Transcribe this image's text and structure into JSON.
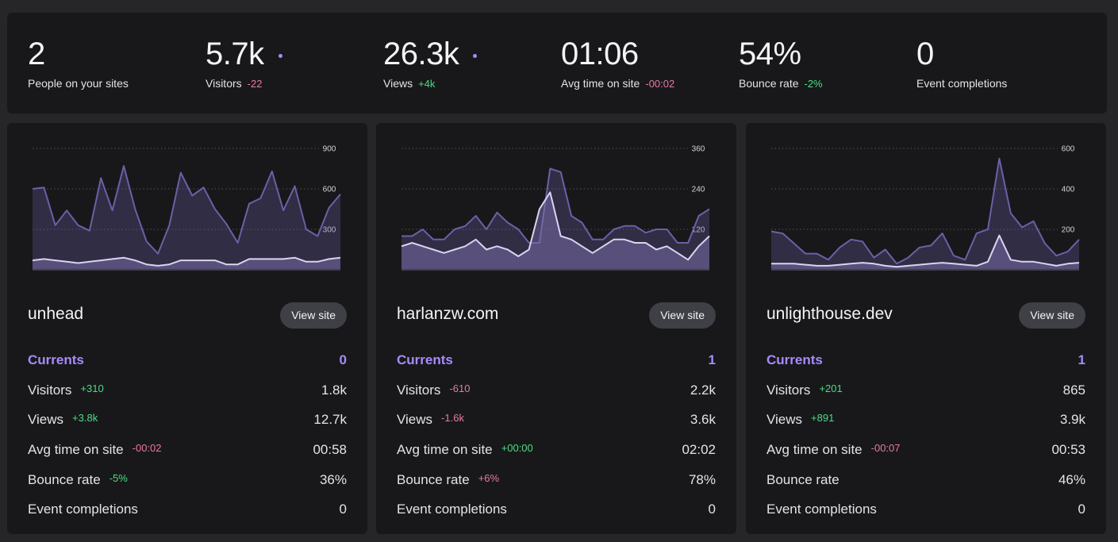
{
  "colors": {
    "accent": "#a78bfa",
    "positive": "#4ade80",
    "negative": "#e879a6",
    "series_views": "#6d5fa6",
    "series_visitors": "#d9d4f0"
  },
  "summary": [
    {
      "value": "2",
      "label": "People on your sites",
      "delta": "",
      "delta_kind": "",
      "dot": false
    },
    {
      "value": "5.7k",
      "label": "Visitors",
      "delta": "-22",
      "delta_kind": "neg",
      "dot": true
    },
    {
      "value": "26.3k",
      "label": "Views",
      "delta": "+4k",
      "delta_kind": "pos",
      "dot": true
    },
    {
      "value": "01:06",
      "label": "Avg time on site",
      "delta": "-00:02",
      "delta_kind": "neg",
      "dot": false
    },
    {
      "value": "54%",
      "label": "Bounce rate",
      "delta": "-2%",
      "delta_kind": "pos",
      "dot": false
    },
    {
      "value": "0",
      "label": "Event completions",
      "delta": "",
      "delta_kind": "",
      "dot": false
    }
  ],
  "sites": [
    {
      "name": "unhead",
      "button": "View site",
      "chart_data": {
        "type": "area",
        "ticks": [
          300,
          600,
          900
        ],
        "ylim": [
          0,
          900
        ],
        "series": [
          {
            "values": [
              600,
              610,
              330,
              440,
              330,
              290,
              680,
              440,
              770,
              450,
              210,
              120,
              330,
              720,
              550,
              610,
              450,
              340,
              200,
              490,
              530,
              730,
              440,
              620,
              300,
              250,
              460,
              560
            ]
          },
          {
            "values": [
              70,
              80,
              70,
              60,
              50,
              60,
              70,
              80,
              90,
              70,
              40,
              30,
              40,
              70,
              70,
              70,
              70,
              40,
              40,
              80,
              80,
              80,
              80,
              90,
              60,
              60,
              80,
              90
            ]
          }
        ]
      },
      "currents_label": "Currents",
      "currents_value": "0",
      "metrics": [
        {
          "label": "Visitors",
          "delta": "+310",
          "delta_kind": "pos",
          "value": "1.8k"
        },
        {
          "label": "Views",
          "delta": "+3.8k",
          "delta_kind": "pos",
          "value": "12.7k"
        },
        {
          "label": "Avg time on site",
          "delta": "-00:02",
          "delta_kind": "neg",
          "value": "00:58"
        },
        {
          "label": "Bounce rate",
          "delta": "-5%",
          "delta_kind": "pos",
          "value": "36%"
        },
        {
          "label": "Event completions",
          "delta": "",
          "delta_kind": "",
          "value": "0"
        }
      ]
    },
    {
      "name": "harlanzw.com",
      "button": "View site",
      "chart_data": {
        "type": "area",
        "ticks": [
          120,
          240,
          360
        ],
        "ylim": [
          0,
          360
        ],
        "series": [
          {
            "values": [
              100,
              100,
              120,
              90,
              90,
              120,
              130,
              160,
              120,
              170,
              140,
              120,
              80,
              80,
              300,
              290,
              160,
              140,
              90,
              90,
              120,
              130,
              130,
              110,
              120,
              120,
              80,
              80,
              160,
              180
            ]
          },
          {
            "values": [
              70,
              80,
              70,
              60,
              50,
              60,
              70,
              90,
              60,
              70,
              60,
              40,
              60,
              180,
              230,
              100,
              90,
              70,
              50,
              70,
              90,
              90,
              80,
              80,
              60,
              70,
              50,
              30,
              70,
              100
            ]
          }
        ]
      },
      "currents_label": "Currents",
      "currents_value": "1",
      "metrics": [
        {
          "label": "Visitors",
          "delta": "-610",
          "delta_kind": "neg",
          "value": "2.2k"
        },
        {
          "label": "Views",
          "delta": "-1.6k",
          "delta_kind": "neg",
          "value": "3.6k"
        },
        {
          "label": "Avg time on site",
          "delta": "+00:00",
          "delta_kind": "pos",
          "value": "02:02"
        },
        {
          "label": "Bounce rate",
          "delta": "+6%",
          "delta_kind": "neg",
          "value": "78%"
        },
        {
          "label": "Event completions",
          "delta": "",
          "delta_kind": "",
          "value": "0"
        }
      ]
    },
    {
      "name": "unlighthouse.dev",
      "button": "View site",
      "chart_data": {
        "type": "area",
        "ticks": [
          200,
          400,
          600
        ],
        "ylim": [
          0,
          600
        ],
        "series": [
          {
            "values": [
              190,
              180,
              130,
              80,
              80,
              50,
              110,
              150,
              140,
              60,
              100,
              30,
              60,
              110,
              120,
              180,
              70,
              50,
              180,
              200,
              550,
              280,
              210,
              240,
              130,
              70,
              90,
              150
            ]
          },
          {
            "values": [
              30,
              30,
              30,
              25,
              20,
              20,
              25,
              30,
              35,
              30,
              20,
              15,
              20,
              25,
              30,
              35,
              30,
              25,
              20,
              40,
              170,
              50,
              40,
              40,
              30,
              20,
              30,
              35
            ]
          }
        ]
      },
      "currents_label": "Currents",
      "currents_value": "1",
      "metrics": [
        {
          "label": "Visitors",
          "delta": "+201",
          "delta_kind": "pos",
          "value": "865"
        },
        {
          "label": "Views",
          "delta": "+891",
          "delta_kind": "pos",
          "value": "3.9k"
        },
        {
          "label": "Avg time on site",
          "delta": "-00:07",
          "delta_kind": "neg",
          "value": "00:53"
        },
        {
          "label": "Bounce rate",
          "delta": "",
          "delta_kind": "",
          "value": "46%"
        },
        {
          "label": "Event completions",
          "delta": "",
          "delta_kind": "",
          "value": "0"
        }
      ]
    }
  ]
}
